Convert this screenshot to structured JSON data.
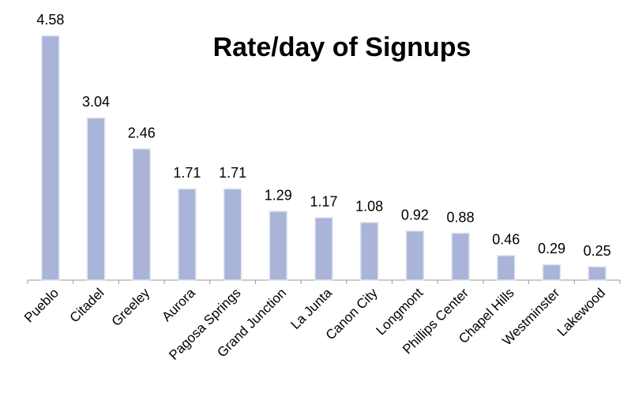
{
  "chart_data": {
    "type": "bar",
    "title": "Rate/day of Signups",
    "categories": [
      "Pueblo",
      "Citadel",
      "Greeley",
      "Aurora",
      "Pagosa Springs",
      "Grand Junction",
      "La Junta",
      "Canon City",
      "Longmont",
      "Phillips Center",
      "Chapel Hills",
      "Westminster",
      "Lakewood"
    ],
    "values": [
      4.58,
      3.04,
      2.46,
      1.71,
      1.71,
      1.29,
      1.17,
      1.08,
      0.92,
      0.88,
      0.46,
      0.29,
      0.25
    ],
    "color": "#a9b4d8",
    "ylim": [
      0,
      5
    ]
  }
}
